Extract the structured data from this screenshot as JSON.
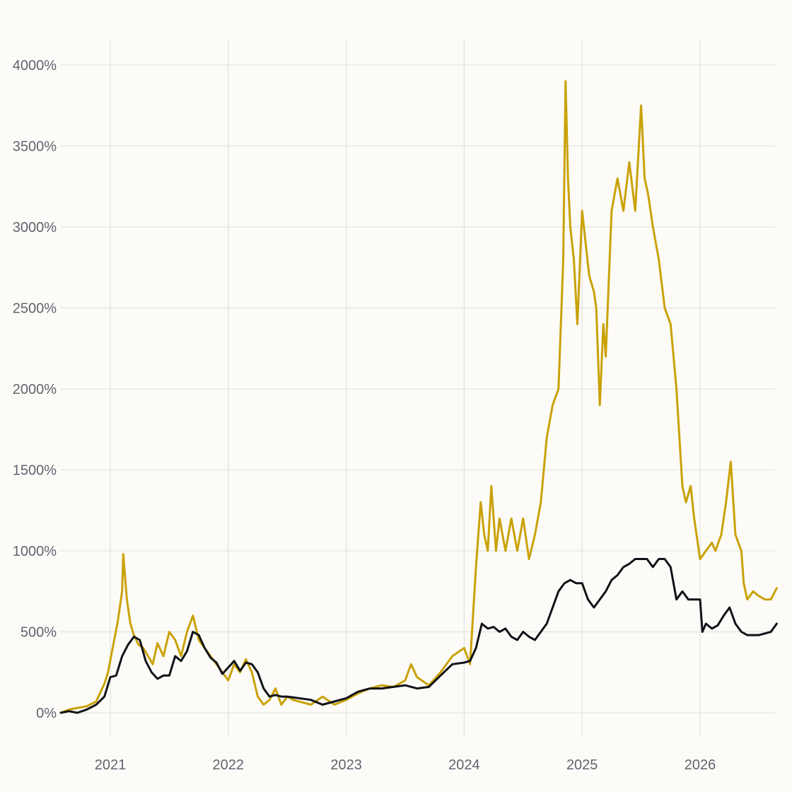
{
  "chart_data": {
    "type": "line",
    "title": "",
    "xlabel": "",
    "ylabel": "",
    "grid": true,
    "legend": "none",
    "xlim": [
      2020.58,
      2026.65
    ],
    "ylim": [
      -200,
      4200
    ],
    "y_ticks": [
      0,
      500,
      1000,
      1500,
      2000,
      2500,
      3000,
      3500,
      4000
    ],
    "y_tick_labels": [
      "0%",
      "500%",
      "1000%",
      "1500%",
      "2000%",
      "2500%",
      "3000%",
      "3500%",
      "4000%"
    ],
    "x_ticks": [
      2021,
      2022,
      2023,
      2024,
      2025,
      2026
    ],
    "x_tick_labels": [
      "2021",
      "2022",
      "2023",
      "2024",
      "2025",
      "2026"
    ],
    "series": [
      {
        "color": "#c9a208",
        "x": [
          2020.58,
          2020.65,
          2020.72,
          2020.8,
          2020.88,
          2020.95,
          2020.98,
          2021.02,
          2021.06,
          2021.1,
          2021.11,
          2021.14,
          2021.17,
          2021.2,
          2021.24,
          2021.28,
          2021.32,
          2021.36,
          2021.4,
          2021.45,
          2021.5,
          2021.55,
          2021.6,
          2021.65,
          2021.7,
          2021.75,
          2021.8,
          2021.85,
          2021.9,
          2021.95,
          2022.0,
          2022.05,
          2022.1,
          2022.15,
          2022.2,
          2022.25,
          2022.3,
          2022.35,
          2022.4,
          2022.45,
          2022.5,
          2022.55,
          2022.6,
          2022.7,
          2022.8,
          2022.9,
          2023.0,
          2023.1,
          2023.2,
          2023.3,
          2023.4,
          2023.5,
          2023.55,
          2023.6,
          2023.7,
          2023.8,
          2023.9,
          2024.0,
          2024.05,
          2024.1,
          2024.14,
          2024.17,
          2024.2,
          2024.23,
          2024.27,
          2024.3,
          2024.35,
          2024.4,
          2024.45,
          2024.5,
          2024.55,
          2024.6,
          2024.65,
          2024.7,
          2024.75,
          2024.8,
          2024.84,
          2024.86,
          2024.88,
          2024.9,
          2024.93,
          2024.96,
          2025.0,
          2025.03,
          2025.06,
          2025.1,
          2025.12,
          2025.15,
          2025.18,
          2025.2,
          2025.25,
          2025.3,
          2025.35,
          2025.4,
          2025.45,
          2025.5,
          2025.53,
          2025.56,
          2025.6,
          2025.65,
          2025.7,
          2025.75,
          2025.8,
          2025.85,
          2025.88,
          2025.92,
          2025.95,
          2026.0,
          2026.05,
          2026.1,
          2026.13,
          2026.18,
          2026.22,
          2026.26,
          2026.3,
          2026.35,
          2026.37,
          2026.4,
          2026.45,
          2026.5,
          2026.55,
          2026.6,
          2026.65
        ],
        "y": [
          0,
          20,
          30,
          40,
          70,
          180,
          250,
          400,
          550,
          750,
          980,
          700,
          550,
          480,
          420,
          400,
          350,
          300,
          430,
          350,
          500,
          450,
          350,
          500,
          600,
          450,
          400,
          350,
          300,
          250,
          200,
          300,
          250,
          330,
          250,
          100,
          50,
          80,
          150,
          50,
          100,
          80,
          70,
          50,
          100,
          50,
          80,
          120,
          150,
          170,
          160,
          200,
          300,
          220,
          170,
          250,
          350,
          400,
          300,
          900,
          1300,
          1100,
          1000,
          1400,
          1000,
          1200,
          1000,
          1200,
          1000,
          1200,
          950,
          1100,
          1300,
          1700,
          1900,
          2000,
          2800,
          3900,
          3300,
          3000,
          2800,
          2400,
          3100,
          2900,
          2700,
          2600,
          2500,
          1900,
          2400,
          2200,
          3100,
          3300,
          3100,
          3400,
          3100,
          3750,
          3300,
          3200,
          3000,
          2800,
          2500,
          2400,
          2000,
          1400,
          1300,
          1400,
          1200,
          950,
          1000,
          1050,
          1000,
          1100,
          1300,
          1550,
          1100,
          1000,
          800,
          700,
          750,
          720,
          700,
          700,
          770
        ]
      },
      {
        "color": "#111318",
        "x": [
          2020.58,
          2020.65,
          2020.72,
          2020.8,
          2020.88,
          2020.95,
          2021.0,
          2021.05,
          2021.1,
          2021.15,
          2021.2,
          2021.25,
          2021.3,
          2021.35,
          2021.4,
          2021.45,
          2021.5,
          2021.55,
          2021.6,
          2021.65,
          2021.7,
          2021.75,
          2021.8,
          2021.85,
          2021.9,
          2021.95,
          2022.0,
          2022.05,
          2022.1,
          2022.15,
          2022.2,
          2022.25,
          2022.3,
          2022.35,
          2022.4,
          2022.45,
          2022.5,
          2022.6,
          2022.7,
          2022.8,
          2022.9,
          2023.0,
          2023.1,
          2023.2,
          2023.3,
          2023.4,
          2023.5,
          2023.6,
          2023.7,
          2023.8,
          2023.9,
          2024.0,
          2024.05,
          2024.1,
          2024.15,
          2024.2,
          2024.25,
          2024.3,
          2024.35,
          2024.4,
          2024.45,
          2024.5,
          2024.55,
          2024.6,
          2024.65,
          2024.7,
          2024.75,
          2024.8,
          2024.85,
          2024.9,
          2024.95,
          2025.0,
          2025.05,
          2025.1,
          2025.15,
          2025.2,
          2025.25,
          2025.3,
          2025.35,
          2025.4,
          2025.45,
          2025.5,
          2025.55,
          2025.6,
          2025.65,
          2025.7,
          2025.75,
          2025.8,
          2025.85,
          2025.9,
          2025.95,
          2026.0,
          2026.02,
          2026.05,
          2026.1,
          2026.15,
          2026.2,
          2026.25,
          2026.3,
          2026.35,
          2026.4,
          2026.45,
          2026.5,
          2026.55,
          2026.6,
          2026.65
        ],
        "y": [
          0,
          10,
          0,
          20,
          50,
          100,
          220,
          230,
          350,
          420,
          470,
          450,
          320,
          250,
          210,
          230,
          230,
          350,
          320,
          380,
          500,
          480,
          400,
          340,
          310,
          240,
          280,
          320,
          260,
          310,
          300,
          250,
          150,
          100,
          110,
          100,
          100,
          90,
          80,
          50,
          70,
          90,
          130,
          150,
          150,
          160,
          170,
          150,
          160,
          230,
          300,
          310,
          320,
          400,
          550,
          520,
          530,
          500,
          520,
          470,
          450,
          500,
          470,
          450,
          500,
          550,
          650,
          750,
          800,
          820,
          800,
          800,
          700,
          650,
          700,
          750,
          820,
          850,
          900,
          920,
          950,
          950,
          950,
          900,
          950,
          950,
          900,
          700,
          750,
          700,
          700,
          700,
          500,
          550,
          520,
          540,
          600,
          650,
          550,
          500,
          480,
          480,
          480,
          490,
          500,
          550
        ]
      }
    ]
  }
}
